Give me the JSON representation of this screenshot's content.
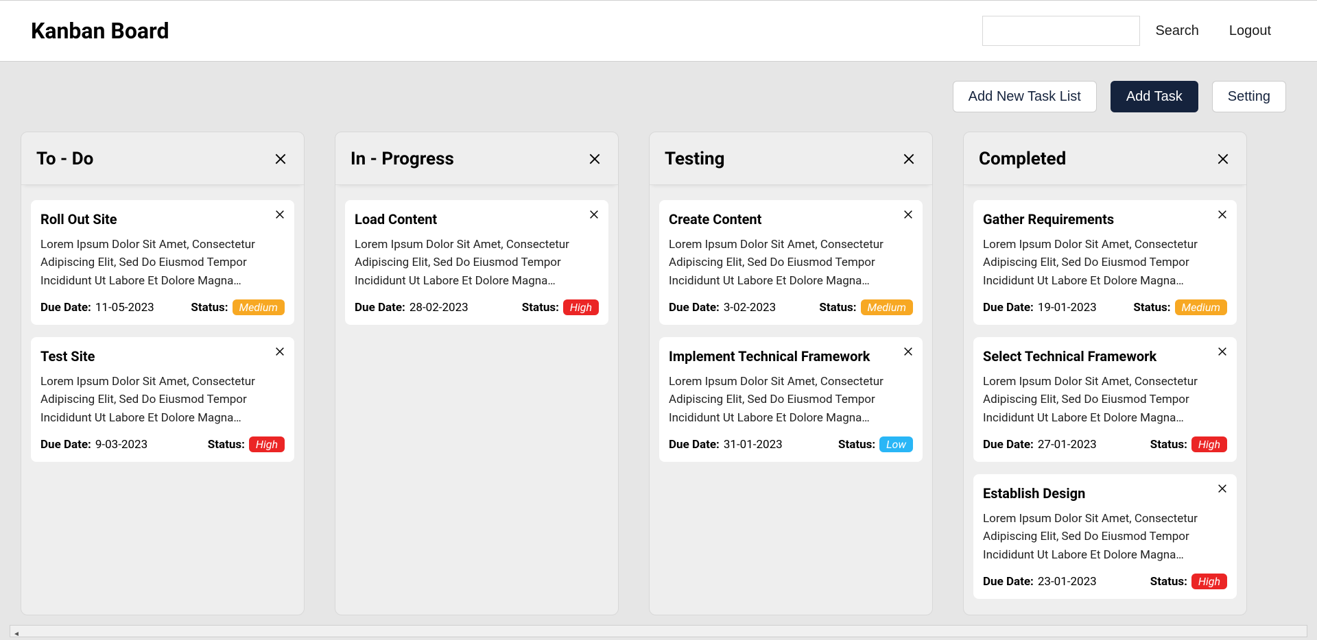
{
  "header": {
    "title": "Kanban Board",
    "search_placeholder": "",
    "search_button": "Search",
    "logout_button": "Logout"
  },
  "toolbar": {
    "add_list": "Add New Task List",
    "add_task": "Add Task",
    "setting": "Setting"
  },
  "labels": {
    "due_date": "Due Date:",
    "status": "Status:"
  },
  "status_colors": {
    "High": "#eb2525",
    "Medium": "#f7a823",
    "Low": "#29b6f6"
  },
  "colors": {
    "page_bg": "#e6e6e6",
    "header_bg": "#ffffff",
    "column_bg": "#eeeeee",
    "card_bg": "#ffffff",
    "primary_btn_bg": "#15233d",
    "primary_btn_text": "#ffffff",
    "text": "#000000"
  },
  "columns": [
    {
      "title": "To - Do",
      "cards": [
        {
          "title": "Roll Out Site",
          "desc": "Lorem Ipsum Dolor Sit Amet, Consectetur Adipiscing Elit, Sed Do Eiusmod Tempor Incididunt Ut Labore Et Dolore Magna…",
          "due": "11-05-2023",
          "status": "Medium"
        },
        {
          "title": "Test Site",
          "desc": "Lorem Ipsum Dolor Sit Amet, Consectetur Adipiscing Elit, Sed Do Eiusmod Tempor Incididunt Ut Labore Et Dolore Magna…",
          "due": "9-03-2023",
          "status": "High"
        }
      ]
    },
    {
      "title": "In - Progress",
      "cards": [
        {
          "title": "Load Content",
          "desc": "Lorem Ipsum Dolor Sit Amet, Consectetur Adipiscing Elit, Sed Do Eiusmod Tempor Incididunt Ut Labore Et Dolore Magna…",
          "due": "28-02-2023",
          "status": "High"
        }
      ]
    },
    {
      "title": "Testing",
      "cards": [
        {
          "title": "Create Content",
          "desc": "Lorem Ipsum Dolor Sit Amet, Consectetur Adipiscing Elit, Sed Do Eiusmod Tempor Incididunt Ut Labore Et Dolore Magna…",
          "due": "3-02-2023",
          "status": "Medium"
        },
        {
          "title": "Implement Technical Framework",
          "desc": "Lorem Ipsum Dolor Sit Amet, Consectetur Adipiscing Elit, Sed Do Eiusmod Tempor Incididunt Ut Labore Et Dolore Magna…",
          "due": "31-01-2023",
          "status": "Low"
        }
      ]
    },
    {
      "title": "Completed",
      "cards": [
        {
          "title": "Gather Requirements",
          "desc": "Lorem Ipsum Dolor Sit Amet, Consectetur Adipiscing Elit, Sed Do Eiusmod Tempor Incididunt Ut Labore Et Dolore Magna…",
          "due": "19-01-2023",
          "status": "Medium"
        },
        {
          "title": "Select Technical Framework",
          "desc": "Lorem Ipsum Dolor Sit Amet, Consectetur Adipiscing Elit, Sed Do Eiusmod Tempor Incididunt Ut Labore Et Dolore Magna…",
          "due": "27-01-2023",
          "status": "High"
        },
        {
          "title": "Establish Design",
          "desc": "Lorem Ipsum Dolor Sit Amet, Consectetur Adipiscing Elit, Sed Do Eiusmod Tempor Incididunt Ut Labore Et Dolore Magna…",
          "due": "23-01-2023",
          "status": "High"
        }
      ]
    }
  ]
}
